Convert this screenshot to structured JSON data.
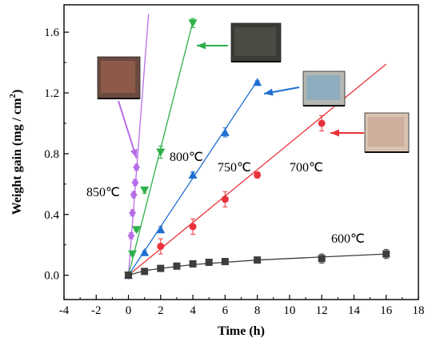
{
  "chart_data": {
    "type": "scatter",
    "title": "",
    "xlabel": "Time (h)",
    "ylabel_main": "Weight gain (mg / cm",
    "ylabel_sup": "2",
    "ylabel_close": ")",
    "xlim": [
      -4,
      18
    ],
    "ylim": [
      -0.16,
      1.78
    ],
    "xticks": [
      -4,
      -2,
      0,
      2,
      4,
      6,
      8,
      10,
      12,
      14,
      16,
      18
    ],
    "yticks": [
      0.0,
      0.4,
      0.8,
      1.2,
      1.6
    ],
    "ytick_labels": [
      "0.0",
      "0.4",
      "0.8",
      "1.2",
      "1.6"
    ],
    "grid": false,
    "series": [
      {
        "name": "850℃",
        "color": "#b66de6",
        "marker": "diamond",
        "x": [
          0,
          0.17,
          0.25,
          0.33,
          0.42,
          0.5
        ],
        "y": [
          0.0,
          0.26,
          0.41,
          0.53,
          0.61,
          0.71
        ],
        "err": [
          0.01,
          0.02,
          0.02,
          0.02,
          0.02,
          0.02
        ],
        "fit": {
          "x": [
            0,
            1.25
          ],
          "y": [
            0,
            1.72
          ]
        },
        "image_icon": "oxidized-sample-photo"
      },
      {
        "name": "800℃",
        "color": "#2eb04a",
        "marker": "triangle-down",
        "x": [
          0,
          0.25,
          0.5,
          1.0,
          2.0,
          4.0
        ],
        "y": [
          0.0,
          0.14,
          0.3,
          0.56,
          0.81,
          1.66
        ],
        "err": [
          0.01,
          0.01,
          0.01,
          0.02,
          0.04,
          0.03
        ],
        "fit": {
          "x": [
            0,
            4.0
          ],
          "y": [
            0,
            1.67
          ]
        },
        "image_icon": "oxidized-sample-photo"
      },
      {
        "name": "750℃",
        "color": "#1f6fd1",
        "marker": "triangle-up",
        "x": [
          0,
          1,
          2,
          4,
          6,
          8
        ],
        "y": [
          0.0,
          0.15,
          0.3,
          0.66,
          0.94,
          1.27
        ],
        "err": [
          0.01,
          0.01,
          0.02,
          0.02,
          0.03,
          0.01
        ],
        "fit": {
          "x": [
            0,
            8
          ],
          "y": [
            0,
            1.28
          ]
        },
        "image_icon": "oxidized-sample-photo"
      },
      {
        "name": "700℃",
        "color": "#e8333a",
        "marker": "circle",
        "x": [
          0,
          2,
          4,
          6,
          8,
          12
        ],
        "y": [
          0.0,
          0.19,
          0.32,
          0.5,
          0.66,
          1.0
        ],
        "err": [
          0.01,
          0.05,
          0.05,
          0.05,
          0.02,
          0.05
        ],
        "fit": {
          "x": [
            0,
            16
          ],
          "y": [
            0,
            1.39
          ]
        },
        "image_icon": "oxidized-sample-photo"
      },
      {
        "name": "600℃",
        "color": "#3d3d3d",
        "marker": "square",
        "x": [
          0,
          1,
          2,
          3,
          4,
          5,
          6,
          8,
          12,
          16
        ],
        "y": [
          0.0,
          0.025,
          0.045,
          0.06,
          0.075,
          0.085,
          0.09,
          0.1,
          0.11,
          0.14
        ],
        "err": [
          0.01,
          0.01,
          0.01,
          0.02,
          0.02,
          0.02,
          0.02,
          0.02,
          0.03,
          0.03
        ],
        "fit": {
          "x": [
            0,
            1,
            2,
            4,
            6,
            8,
            12,
            16
          ],
          "y": [
            0,
            0.03,
            0.045,
            0.07,
            0.085,
            0.1,
            0.12,
            0.14
          ]
        },
        "image_icon": null
      }
    ]
  }
}
